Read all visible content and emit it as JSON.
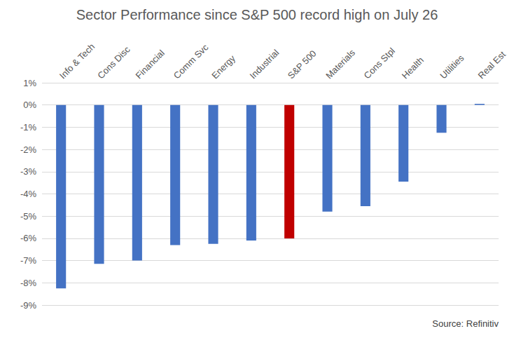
{
  "chart_data": {
    "type": "bar",
    "title": "Sector Performance since S&P 500 record high on July 26",
    "annotations": [
      "Source: Refinitiv"
    ],
    "categories": [
      "Info & Tech",
      "Cons Disc",
      "Financial",
      "Comm Svc",
      "Energy",
      "Industrial",
      "S&P 500",
      "Materials",
      "Cons Stpl",
      "Health",
      "Utilities",
      "Real Est"
    ],
    "values": [
      -8.25,
      -7.15,
      -7.0,
      -6.3,
      -6.25,
      -6.1,
      -6.0,
      -4.8,
      -4.55,
      -3.45,
      -1.25,
      0.05
    ],
    "colors": [
      "#4472c4",
      "#4472c4",
      "#4472c4",
      "#4472c4",
      "#4472c4",
      "#4472c4",
      "#c00000",
      "#4472c4",
      "#4472c4",
      "#4472c4",
      "#4472c4",
      "#4472c4"
    ],
    "ylim": [
      -9,
      1
    ],
    "yticks": [
      {
        "value": -9,
        "label": "-9%"
      },
      {
        "value": -8,
        "label": "-8%"
      },
      {
        "value": -7,
        "label": "-7%"
      },
      {
        "value": -6,
        "label": "-6%"
      },
      {
        "value": -5,
        "label": "-5%"
      },
      {
        "value": -4,
        "label": "-4%"
      },
      {
        "value": -3,
        "label": "-3%"
      },
      {
        "value": -2,
        "label": "-2%"
      },
      {
        "value": -1,
        "label": "-1%"
      },
      {
        "value": 0,
        "label": "0%"
      },
      {
        "value": 1,
        "label": "1%"
      }
    ],
    "grid": true
  }
}
